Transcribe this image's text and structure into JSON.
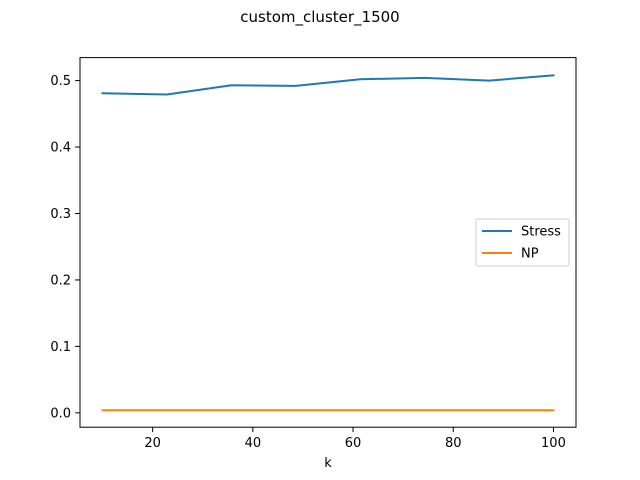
{
  "chart_data": {
    "type": "line",
    "title": "custom_cluster_1500",
    "xlabel": "k",
    "ylabel": "",
    "xlim": [
      5.5,
      104.5
    ],
    "ylim": [
      -0.0216,
      0.5346
    ],
    "x": [
      10,
      22.86,
      35.71,
      48.57,
      61.43,
      74.29,
      87.14,
      100
    ],
    "xticks": [
      20,
      40,
      60,
      80,
      100
    ],
    "yticks": [
      0.0,
      0.1,
      0.2,
      0.3,
      0.4,
      0.5
    ],
    "xtick_labels": [
      "20",
      "40",
      "60",
      "80",
      "100"
    ],
    "ytick_labels": [
      "0.0",
      "0.1",
      "0.2",
      "0.3",
      "0.4",
      "0.5"
    ],
    "grid": false,
    "legend_position": "center-right",
    "series": [
      {
        "name": "Stress",
        "color": "#1f77b4",
        "values": [
          0.481,
          0.479,
          0.493,
          0.492,
          0.502,
          0.504,
          0.5,
          0.508
        ]
      },
      {
        "name": "NP",
        "color": "#ff7f0e",
        "values": [
          0.004,
          0.004,
          0.004,
          0.004,
          0.004,
          0.004,
          0.004,
          0.004
        ]
      }
    ]
  }
}
